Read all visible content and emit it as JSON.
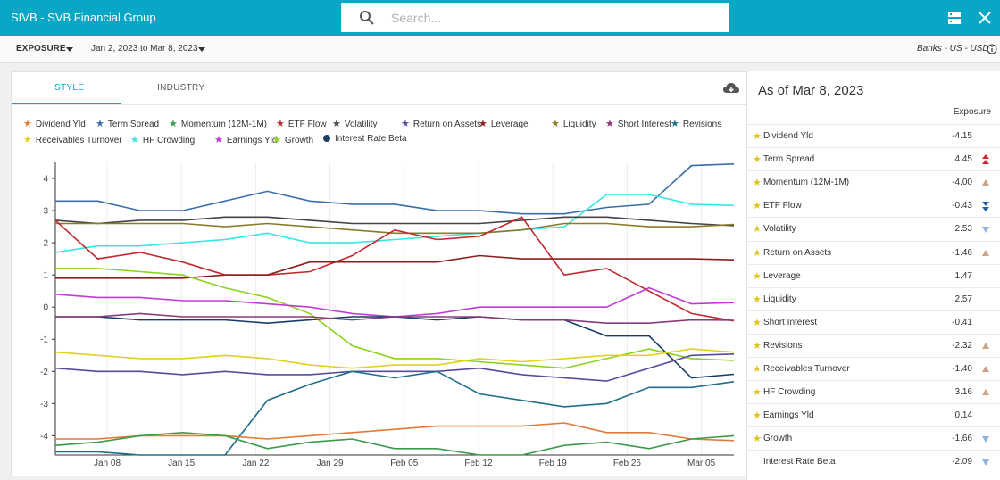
{
  "header": {
    "app_title": "SIVB - SVB Financial Group",
    "search_placeholder": "Search...",
    "bg_color": "#0aa6c6"
  },
  "subbar": {
    "view_label": "EXPOSURE",
    "date_range": "Jan 2, 2023 to Mar 8, 2023",
    "universe": "Banks - US - USD"
  },
  "tabs": [
    {
      "label": "STYLE",
      "active": true
    },
    {
      "label": "INDUSTRY",
      "active": false
    }
  ],
  "legend": [
    {
      "label": "Dividend Yld",
      "color": "#e07b39",
      "marker": "star"
    },
    {
      "label": "Term Spread",
      "color": "#3a6ea8",
      "marker": "star"
    },
    {
      "label": "Momentum (12M-1M)",
      "color": "#3d9a4a",
      "marker": "star"
    },
    {
      "label": "ETF Flow",
      "color": "#c0282d",
      "marker": "star"
    },
    {
      "label": "Volatility",
      "color": "#444444",
      "marker": "star"
    },
    {
      "label": "Return on Assets",
      "color": "#5a4a9c",
      "marker": "star"
    },
    {
      "label": "Leverage",
      "color": "#8b1f1f",
      "marker": "star"
    },
    {
      "label": "Liquidity",
      "color": "#8a7a2a",
      "marker": "star"
    },
    {
      "label": "Short Interest",
      "color": "#8a3a7a",
      "marker": "star"
    },
    {
      "label": "Revisions",
      "color": "#1f6f8b",
      "marker": "star"
    },
    {
      "label": "Receivables Turnover",
      "color": "#e3d21a",
      "marker": "star"
    },
    {
      "label": "HF Crowding",
      "color": "#33e8e0",
      "marker": "star"
    },
    {
      "label": "Earnings Yld",
      "color": "#c23ad6",
      "marker": "star"
    },
    {
      "label": "Growth",
      "color": "#8ad31a",
      "marker": "star"
    },
    {
      "label": "Interest Rate Beta",
      "color": "#163e66",
      "marker": "dot"
    }
  ],
  "chart_data": {
    "type": "line",
    "x_tick_labels": [
      "Jan 08",
      "Jan 15",
      "Jan 22",
      "Jan 29",
      "Feb 05",
      "Feb 12",
      "Feb 19",
      "Feb 26",
      "Mar 05"
    ],
    "x": [
      "Jan 02",
      "Jan 06",
      "Jan 10",
      "Jan 14",
      "Jan 18",
      "Jan 22",
      "Jan 26",
      "Jan 30",
      "Feb 03",
      "Feb 07",
      "Feb 11",
      "Feb 15",
      "Feb 19",
      "Feb 23",
      "Feb 27",
      "Mar 03",
      "Mar 08"
    ],
    "ylim": [
      -4.6,
      4.5
    ],
    "yticks": [
      -4,
      -3,
      -2,
      -1,
      0,
      1,
      2,
      3,
      4
    ],
    "grid": "vertical",
    "series": [
      {
        "name": "Term Spread",
        "color": "#3a6ea8",
        "values": [
          3.3,
          3.3,
          3.0,
          3.0,
          3.3,
          3.6,
          3.3,
          3.2,
          3.2,
          3.0,
          3.0,
          2.9,
          2.9,
          3.1,
          3.2,
          4.4,
          4.45
        ]
      },
      {
        "name": "HF Crowding",
        "color": "#33e8e0",
        "values": [
          1.7,
          1.9,
          1.9,
          2.0,
          2.1,
          2.3,
          2.0,
          2.0,
          2.1,
          2.2,
          2.3,
          2.4,
          2.5,
          3.5,
          3.5,
          3.2,
          3.16
        ]
      },
      {
        "name": "Volatility",
        "color": "#444444",
        "values": [
          2.7,
          2.6,
          2.7,
          2.7,
          2.8,
          2.8,
          2.7,
          2.6,
          2.6,
          2.6,
          2.6,
          2.7,
          2.8,
          2.8,
          2.7,
          2.6,
          2.53
        ]
      },
      {
        "name": "Liquidity",
        "color": "#8a7a2a",
        "values": [
          2.6,
          2.6,
          2.6,
          2.6,
          2.5,
          2.6,
          2.5,
          2.4,
          2.3,
          2.3,
          2.3,
          2.4,
          2.6,
          2.6,
          2.5,
          2.5,
          2.57
        ]
      },
      {
        "name": "ETF Flow",
        "color": "#c0282d",
        "values": [
          2.7,
          1.5,
          1.7,
          1.4,
          1.0,
          1.0,
          1.1,
          1.6,
          2.4,
          2.1,
          2.2,
          2.8,
          1.0,
          1.2,
          0.5,
          -0.2,
          -0.43
        ]
      },
      {
        "name": "Leverage",
        "color": "#8b1f1f",
        "values": [
          0.9,
          0.9,
          0.9,
          0.9,
          1.0,
          1.0,
          1.4,
          1.4,
          1.4,
          1.4,
          1.6,
          1.5,
          1.5,
          1.5,
          1.5,
          1.5,
          1.47
        ]
      },
      {
        "name": "Growth",
        "color": "#8ad31a",
        "values": [
          1.2,
          1.2,
          1.1,
          1.0,
          0.6,
          0.3,
          -0.2,
          -1.2,
          -1.6,
          -1.6,
          -1.7,
          -1.8,
          -1.9,
          -1.6,
          -1.3,
          -1.6,
          -1.66
        ]
      },
      {
        "name": "Earnings Yld",
        "color": "#c23ad6",
        "values": [
          0.4,
          0.3,
          0.3,
          0.2,
          0.2,
          0.1,
          0.0,
          -0.2,
          -0.3,
          -0.2,
          0.0,
          0.0,
          0.0,
          0.0,
          0.6,
          0.1,
          0.14
        ]
      },
      {
        "name": "Interest Rate Beta",
        "color": "#163e66",
        "values": [
          -0.3,
          -0.3,
          -0.4,
          -0.4,
          -0.4,
          -0.5,
          -0.4,
          -0.3,
          -0.3,
          -0.4,
          -0.3,
          -0.4,
          -0.4,
          -0.9,
          -0.9,
          -2.2,
          -2.09
        ]
      },
      {
        "name": "Short Interest",
        "color": "#8a3a7a",
        "values": [
          -0.3,
          -0.3,
          -0.2,
          -0.3,
          -0.3,
          -0.3,
          -0.3,
          -0.4,
          -0.3,
          -0.3,
          -0.3,
          -0.4,
          -0.4,
          -0.5,
          -0.5,
          -0.4,
          -0.41
        ]
      },
      {
        "name": "Receivables Turnover",
        "color": "#e3d21a",
        "values": [
          -1.4,
          -1.5,
          -1.6,
          -1.6,
          -1.5,
          -1.6,
          -1.8,
          -1.9,
          -1.8,
          -1.8,
          -1.6,
          -1.7,
          -1.6,
          -1.5,
          -1.5,
          -1.3,
          -1.4
        ]
      },
      {
        "name": "Return on Assets",
        "color": "#5a4a9c",
        "values": [
          -1.9,
          -2.0,
          -2.0,
          -2.1,
          -2.0,
          -2.1,
          -2.1,
          -2.0,
          -2.0,
          -2.0,
          -1.9,
          -2.1,
          -2.2,
          -2.3,
          -1.9,
          -1.5,
          -1.46
        ]
      },
      {
        "name": "Revisions",
        "color": "#1f6f8b",
        "values": [
          -4.5,
          -4.5,
          -4.6,
          -4.6,
          -4.6,
          -2.9,
          -2.4,
          -2.0,
          -2.2,
          -2.0,
          -2.7,
          -2.9,
          -3.1,
          -3.0,
          -2.5,
          -2.5,
          -2.32
        ]
      },
      {
        "name": "Dividend Yld",
        "color": "#e07b39",
        "values": [
          -4.1,
          -4.1,
          -4.0,
          -4.0,
          -4.0,
          -4.1,
          -4.0,
          -3.9,
          -3.8,
          -3.7,
          -3.7,
          -3.7,
          -3.6,
          -3.9,
          -3.9,
          -4.1,
          -4.15
        ]
      },
      {
        "name": "Momentum (12M-1M)",
        "color": "#3d9a4a",
        "values": [
          -4.3,
          -4.2,
          -4.0,
          -3.9,
          -4.0,
          -4.4,
          -4.2,
          -4.1,
          -4.4,
          -4.4,
          -4.6,
          -4.6,
          -4.3,
          -4.2,
          -4.4,
          -4.1,
          -4.0
        ]
      }
    ]
  },
  "right_panel": {
    "as_of": "As of Mar 8, 2023",
    "column_header": "Exposure",
    "rows": [
      {
        "name": "Dividend Yld",
        "value": "-4.15",
        "arrow": "none"
      },
      {
        "name": "Term Spread",
        "value": "4.45",
        "arrow": "double-up-red"
      },
      {
        "name": "Momentum (12M-1M)",
        "value": "-4.00",
        "arrow": "up-tan"
      },
      {
        "name": "ETF Flow",
        "value": "-0.43",
        "arrow": "double-down-blue"
      },
      {
        "name": "Volatility",
        "value": "2.53",
        "arrow": "down-lightblue"
      },
      {
        "name": "Return on Assets",
        "value": "-1.46",
        "arrow": "up-tan"
      },
      {
        "name": "Leverage",
        "value": "1.47",
        "arrow": "none"
      },
      {
        "name": "Liquidity",
        "value": "2.57",
        "arrow": "none"
      },
      {
        "name": "Short Interest",
        "value": "-0.41",
        "arrow": "none"
      },
      {
        "name": "Revisions",
        "value": "-2.32",
        "arrow": "up-tan"
      },
      {
        "name": "Receivables Turnover",
        "value": "-1.40",
        "arrow": "up-tan"
      },
      {
        "name": "HF Crowding",
        "value": "3.16",
        "arrow": "up-tan"
      },
      {
        "name": "Earnings Yld",
        "value": "0.14",
        "arrow": "none"
      },
      {
        "name": "Growth",
        "value": "-1.66",
        "arrow": "down-lightblue"
      },
      {
        "name": "Interest Rate Beta",
        "value": "-2.09",
        "arrow": "down-lightblue",
        "no_star": true
      }
    ]
  }
}
